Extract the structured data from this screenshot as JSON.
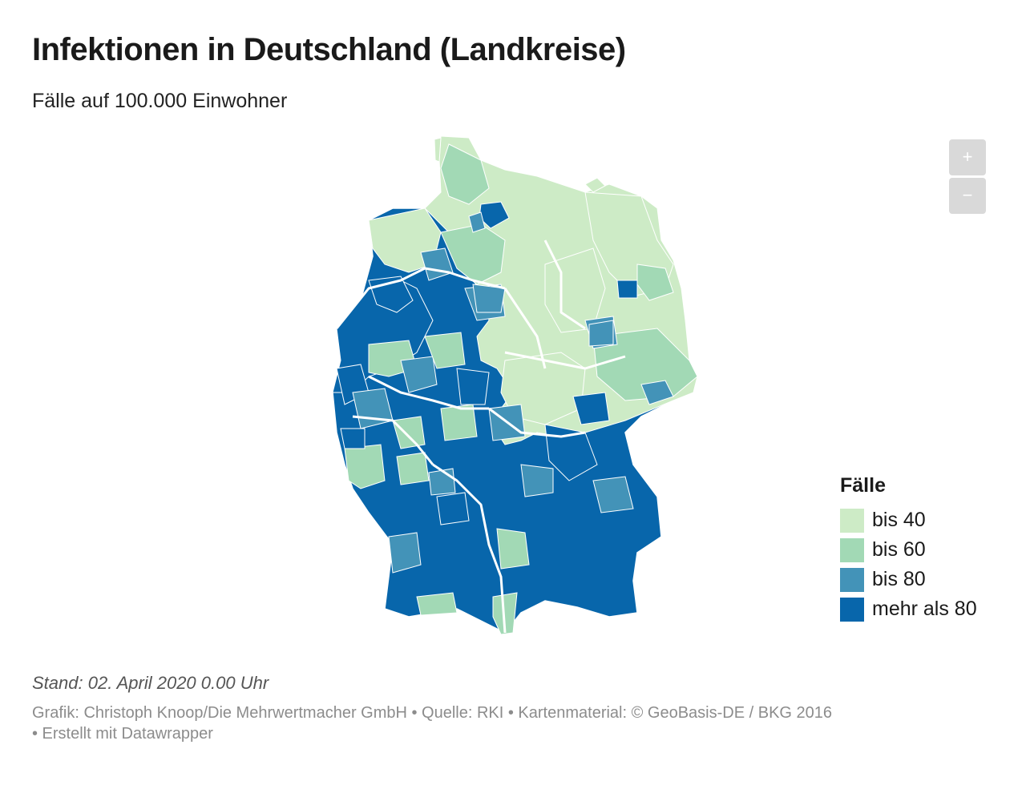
{
  "title": "Infektionen in Deutschland (Landkreise)",
  "subtitle": "Fälle auf 100.000 Einwohner",
  "zoom": {
    "in_label": "+",
    "out_label": "−"
  },
  "legend": {
    "title": "Fälle",
    "items": [
      {
        "label": "bis 40",
        "color": "#cdebc6"
      },
      {
        "label": "bis 60",
        "color": "#a2d9b5"
      },
      {
        "label": "bis 80",
        "color": "#4393b8"
      },
      {
        "label": "mehr als 80",
        "color": "#0866ab"
      }
    ]
  },
  "colors": {
    "border": "#ffffff",
    "state_border": "#ffffff"
  },
  "stand": "Stand: 02. April 2020 0.00 Uhr",
  "credits_line1": "Grafik: Christoph Knoop/Die Mehrwertmacher GmbH • Quelle: RKI • Kartenmaterial: © GeoBasis-DE / BKG 2016",
  "credits_line2": "• Erstellt mit Datawrapper"
}
